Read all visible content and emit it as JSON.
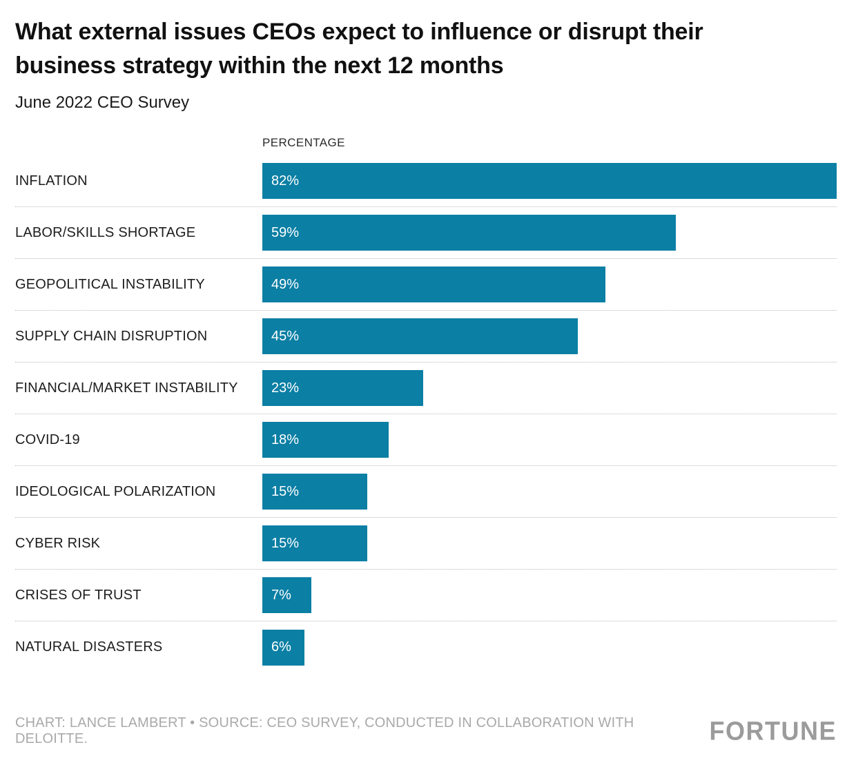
{
  "header": {
    "title": "What external issues CEOs expect to influence or disrupt their business strategy within the next 12 months",
    "subtitle": "June 2022 CEO Survey"
  },
  "colors": {
    "bar": "#0b7fa4",
    "bar_label": "#ffffff",
    "separator": "#b9b9b9",
    "footer_text": "#a9a9a9",
    "brand": "#9b9b9b"
  },
  "chart_data": {
    "type": "bar",
    "orientation": "horizontal",
    "title": "What external issues CEOs expect to influence or disrupt their business strategy within the next 12 months",
    "subtitle": "June 2022 CEO Survey",
    "xlabel": "PERCENTAGE",
    "ylabel": "",
    "xlim": [
      0,
      82
    ],
    "grid": false,
    "legend": false,
    "categories": [
      "INFLATION",
      "LABOR/SKILLS SHORTAGE",
      "GEOPOLITICAL INSTABILITY",
      "SUPPLY CHAIN DISRUPTION",
      "FINANCIAL/MARKET INSTABILITY",
      "COVID-19",
      "IDEOLOGICAL POLARIZATION",
      "CYBER RISK",
      "CRISES OF TRUST",
      "NATURAL DISASTERS"
    ],
    "values": [
      82,
      59,
      49,
      45,
      23,
      18,
      15,
      15,
      7,
      6
    ],
    "value_labels": [
      "82%",
      "59%",
      "49%",
      "45%",
      "23%",
      "18%",
      "15%",
      "15%",
      "7%",
      "6%"
    ]
  },
  "footer": {
    "credit": "CHART: LANCE LAMBERT • SOURCE: CEO SURVEY, CONDUCTED IN COLLABORATION WITH DELOITTE.",
    "brand": "FORTUNE"
  }
}
